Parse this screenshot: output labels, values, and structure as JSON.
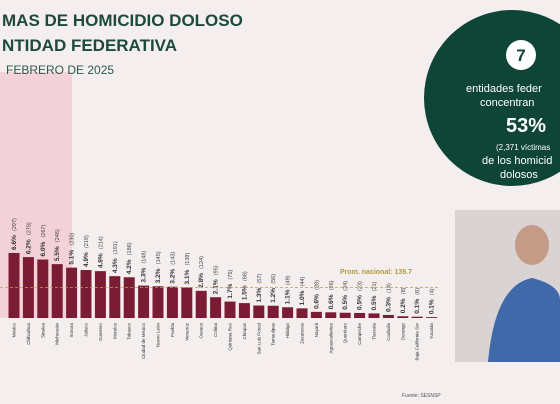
{
  "chart_data": {
    "type": "bar",
    "title_lines": [
      "MAS DE HOMICIDIO DOLOSO",
      "NTIDAD FEDERATIVA"
    ],
    "subtitle": "FEBRERO DE 2025",
    "categories": [
      "México",
      "Chihuahua",
      "Sinaloa",
      "Michoacán",
      "Sonora",
      "Jalisco",
      "Guerrero",
      "Morelos",
      "Tabasco",
      "Ciudad de México",
      "Nuevo León",
      "Puebla",
      "Veracruz",
      "Oaxaca",
      "Colima",
      "Quintana Roo",
      "Chiapas",
      "San Luis Potosí",
      "Tamaulipas",
      "Hidalgo",
      "Zacatecas",
      "Nayarit",
      "Aguascalientes",
      "Querétaro",
      "Campeche",
      "Tlaxcala",
      "Coahuila",
      "Durango",
      "Baja California Sur",
      "Yucatán"
    ],
    "values": [
      297,
      278,
      267,
      246,
      230,
      219,
      214,
      191,
      186,
      148,
      145,
      143,
      139,
      124,
      95,
      75,
      68,
      57,
      56,
      49,
      44,
      28,
      26,
      24,
      23,
      21,
      14,
      8,
      6,
      4
    ],
    "value_labels": [
      "(297)",
      "(278)",
      "(267)",
      "(246)",
      "(230)",
      "(219)",
      "(214)",
      "(191)",
      "(186)",
      "(148)",
      "(145)",
      "(143)",
      "(139)",
      "(124)",
      "(95)",
      "(75)",
      "(68)",
      "(57)",
      "(56)",
      "(49)",
      "(44)",
      "(28)",
      "(26)",
      "(24)",
      "(23)",
      "(21)",
      "(14)",
      "(8)",
      "(6)",
      "(4)"
    ],
    "shares": [
      6.6,
      6.2,
      6.0,
      5.5,
      5.1,
      4.9,
      4.8,
      4.3,
      4.2,
      3.3,
      3.2,
      3.2,
      3.1,
      2.8,
      2.1,
      1.7,
      1.5,
      1.3,
      1.2,
      1.1,
      1.0,
      0.6,
      0.6,
      0.5,
      0.5,
      0.5,
      0.3,
      0.2,
      0.1,
      0.1
    ],
    "share_labels": [
      "6.6%",
      "6.2%",
      "6.0%",
      "5.5%",
      "5.1%",
      "4.9%",
      "4.8%",
      "4.3%",
      "4.2%",
      "3.3%",
      "3.2%",
      "3.2%",
      "3.1%",
      "2.8%",
      "2.1%",
      "1.7%",
      "1.5%",
      "1.3%",
      "1.2%",
      "1.1%",
      "1.0%",
      "0.6%",
      "0.6%",
      "0.5%",
      "0.5%",
      "0.5%",
      "0.3%",
      "0.2%",
      "0.1%",
      "0.1%"
    ],
    "color": "#7b1c35",
    "average": 139.7,
    "average_label": "Prom. nacional: 139.7",
    "source": "Fuente: SESNSP",
    "callout": {
      "number": "7",
      "lines": [
        "entidades feder",
        "concentran"
      ],
      "share": "53%",
      "note": "(2,371 víctimas",
      "lines_after": [
        "de los homicid",
        "dolosos"
      ]
    }
  }
}
